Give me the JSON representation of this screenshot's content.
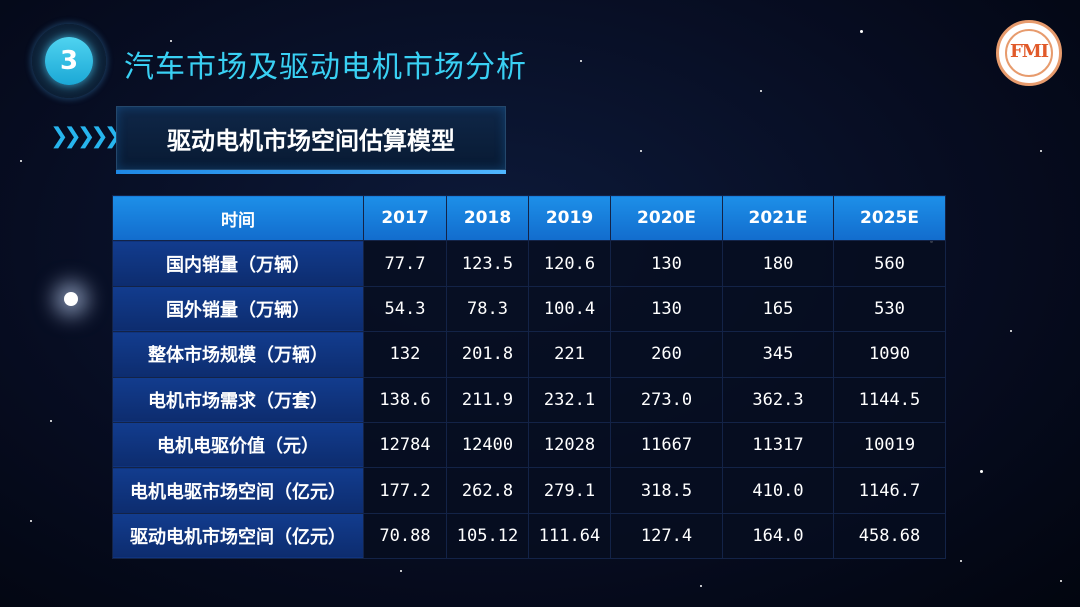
{
  "header": {
    "section_number": "3",
    "title": "汽车市场及驱动电机市场分析",
    "logo_text": "FMI"
  },
  "subtitle": {
    "chevrons": "❯❯❯❯❯",
    "text": "驱动电机市场空间估算模型"
  },
  "table": {
    "headers": [
      "时间",
      "2017",
      "2018",
      "2019",
      "2020E",
      "2021E",
      "2025E"
    ],
    "rows": [
      [
        "国内销量（万辆）",
        "77.7",
        "123.5",
        "120.6",
        "130",
        "180",
        "560"
      ],
      [
        "国外销量（万辆）",
        "54.3",
        "78.3",
        "100.4",
        "130",
        "165",
        "530"
      ],
      [
        "整体市场规模（万辆）",
        "132",
        "201.8",
        "221",
        "260",
        "345",
        "1090"
      ],
      [
        "电机市场需求（万套）",
        "138.6",
        "211.9",
        "232.1",
        "273.0",
        "362.3",
        "1144.5"
      ],
      [
        "电机电驱价值（元）",
        "12784",
        "12400",
        "12028",
        "11667",
        "11317",
        "10019"
      ],
      [
        "电机电驱市场空间（亿元）",
        "177.2",
        "262.8",
        "279.1",
        "318.5",
        "410.0",
        "1146.7"
      ],
      [
        "驱动电机市场空间（亿元）",
        "70.88",
        "105.12",
        "111.64",
        "127.4",
        "164.0",
        "458.68"
      ]
    ]
  },
  "colors": {
    "title": "#39d0f3",
    "header_bg": "#1d8fe8",
    "rowhead_bg": "#123c8e",
    "logo_accent": "#e15a2a"
  }
}
